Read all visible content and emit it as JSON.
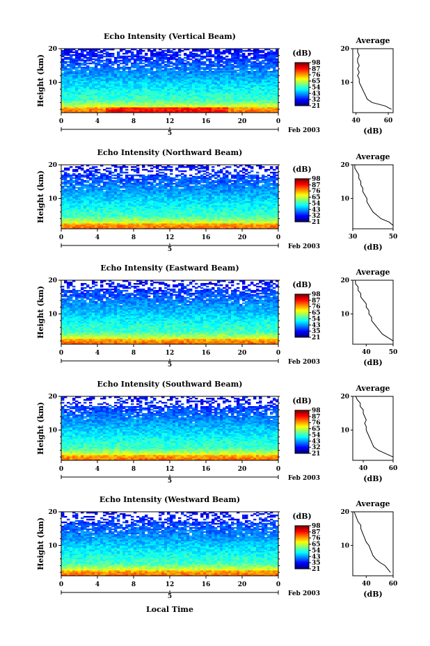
{
  "figure": {
    "date_label": "Feb 2003",
    "bottom_xlabel": "Local Time",
    "day_marker": "5"
  },
  "chart_data": [
    {
      "type": "heatmap",
      "title": "Echo Intensity (Vertical Beam)",
      "ylabel": "Height (km)",
      "xlabel": "",
      "xticks": [
        "0",
        "4",
        "8",
        "12",
        "16",
        "20",
        "0"
      ],
      "yticks": [
        "20",
        "10"
      ],
      "xlim": [
        0,
        24
      ],
      "ylim": [
        1,
        20
      ],
      "colorbar": {
        "label": "(dB)",
        "ticks": [
          "98",
          "87",
          "76",
          "65",
          "54",
          "43",
          "32",
          "21"
        ]
      },
      "average": {
        "title": "Average",
        "xlabel": "(dB)",
        "xticks": [
          "40",
          "60"
        ],
        "xlim": [
          38,
          63
        ],
        "yticks": [
          "20",
          "10"
        ],
        "height_km": [
          2,
          3,
          4,
          5,
          6,
          7,
          8,
          9,
          10,
          11,
          12,
          13,
          14,
          15,
          16,
          17,
          18,
          19,
          20
        ],
        "values_db": [
          62,
          58,
          50,
          47,
          46,
          45,
          44,
          43,
          42,
          42,
          41,
          42,
          41,
          42,
          41,
          41,
          42,
          41,
          41
        ]
      }
    },
    {
      "type": "heatmap",
      "title": "Echo Intensity (Northward Beam)",
      "ylabel": "Height (km)",
      "xlabel": "",
      "xticks": [
        "0",
        "4",
        "8",
        "12",
        "16",
        "20",
        "0"
      ],
      "yticks": [
        "20",
        "10"
      ],
      "xlim": [
        0,
        24
      ],
      "ylim": [
        1,
        20
      ],
      "colorbar": {
        "label": "(dB)",
        "ticks": [
          "98",
          "87",
          "76",
          "65",
          "54",
          "43",
          "32",
          "21"
        ]
      },
      "average": {
        "title": "Average",
        "xlabel": "(dB)",
        "xticks": [
          "30",
          "50"
        ],
        "xlim": [
          30,
          50
        ],
        "yticks": [
          "20",
          "10"
        ],
        "height_km": [
          2,
          3,
          4,
          5,
          6,
          7,
          8,
          9,
          10,
          11,
          12,
          13,
          14,
          15,
          16,
          17,
          18,
          19,
          20
        ],
        "values_db": [
          50,
          48,
          44,
          42,
          40,
          39,
          38,
          37,
          37,
          36,
          35,
          35,
          34,
          34,
          33,
          33,
          32,
          31,
          31
        ]
      }
    },
    {
      "type": "heatmap",
      "title": "Echo Intensity (Eastward Beam)",
      "ylabel": "Height (km)",
      "xlabel": "",
      "xticks": [
        "0",
        "4",
        "8",
        "12",
        "16",
        "20",
        "0"
      ],
      "yticks": [
        "20",
        "10"
      ],
      "xlim": [
        0,
        24
      ],
      "ylim": [
        1,
        20
      ],
      "colorbar": {
        "label": "(dB)",
        "ticks": [
          "98",
          "87",
          "76",
          "65",
          "54",
          "43",
          "35",
          "21"
        ]
      },
      "average": {
        "title": "Average",
        "xlabel": "(dB)",
        "xticks": [
          "40",
          "50"
        ],
        "xlim": [
          35,
          50
        ],
        "yticks": [
          "20",
          "10"
        ],
        "height_km": [
          2,
          3,
          4,
          5,
          6,
          7,
          8,
          9,
          10,
          11,
          12,
          13,
          14,
          15,
          16,
          17,
          18,
          19,
          20
        ],
        "values_db": [
          50,
          48,
          46,
          45,
          44,
          43,
          42,
          42,
          41,
          41,
          40,
          40,
          39,
          38,
          38,
          37,
          37,
          36,
          36
        ]
      }
    },
    {
      "type": "heatmap",
      "title": "Echo Intensity (Southward Beam)",
      "ylabel": "Height (km)",
      "xlabel": "",
      "xticks": [
        "0",
        "4",
        "8",
        "12",
        "16",
        "20",
        "0"
      ],
      "yticks": [
        "20",
        "10"
      ],
      "xlim": [
        0,
        24
      ],
      "ylim": [
        1,
        20
      ],
      "colorbar": {
        "label": "(dB)",
        "ticks": [
          "98",
          "87",
          "76",
          "65",
          "54",
          "43",
          "32",
          "21"
        ]
      },
      "average": {
        "title": "Average",
        "xlabel": "(dB)",
        "xticks": [
          "40",
          "60"
        ],
        "xlim": [
          33,
          60
        ],
        "yticks": [
          "20",
          "10"
        ],
        "height_km": [
          2,
          3,
          4,
          5,
          6,
          7,
          8,
          9,
          10,
          11,
          12,
          13,
          14,
          15,
          16,
          17,
          18,
          19,
          20
        ],
        "values_db": [
          60,
          55,
          50,
          47,
          46,
          45,
          44,
          43,
          42,
          42,
          41,
          42,
          41,
          40,
          40,
          38,
          38,
          36,
          35
        ]
      }
    },
    {
      "type": "heatmap",
      "title": "Echo Intensity (Westward Beam)",
      "ylabel": "Height (km)",
      "xlabel": "Local Time",
      "xticks": [
        "0",
        "4",
        "8",
        "12",
        "16",
        "20",
        "0"
      ],
      "yticks": [
        "20",
        "10"
      ],
      "xlim": [
        0,
        24
      ],
      "ylim": [
        1,
        20
      ],
      "colorbar": {
        "label": "(dB)",
        "ticks": [
          "98",
          "87",
          "76",
          "65",
          "54",
          "43",
          "35",
          "21"
        ]
      },
      "average": {
        "title": "Average",
        "xlabel": "(dB)",
        "xticks": [
          "40",
          "60"
        ],
        "xlim": [
          30,
          60
        ],
        "yticks": [
          "20",
          "10"
        ],
        "height_km": [
          2,
          3,
          4,
          5,
          6,
          7,
          8,
          9,
          10,
          11,
          12,
          13,
          14,
          15,
          16,
          17,
          18,
          19,
          20
        ],
        "values_db": [
          58,
          56,
          54,
          50,
          47,
          45,
          44,
          43,
          42,
          40,
          39,
          38,
          37,
          36,
          36,
          34,
          33,
          32,
          31
        ]
      }
    }
  ]
}
